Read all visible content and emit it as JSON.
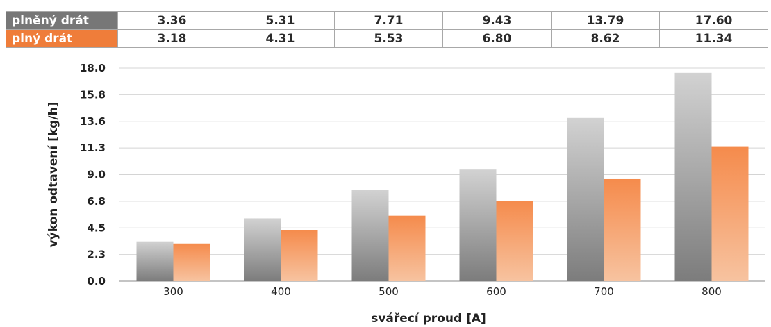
{
  "table": {
    "rows": [
      {
        "label": "plněný drát",
        "values": [
          "3.36",
          "5.31",
          "7.71",
          "9.43",
          "13.79",
          "17.60"
        ]
      },
      {
        "label": "plný drát",
        "values": [
          "3.18",
          "4.31",
          "5.53",
          "6.80",
          "8.62",
          "11.34"
        ]
      }
    ]
  },
  "chart_data": {
    "type": "bar",
    "categories": [
      "300",
      "400",
      "500",
      "600",
      "700",
      "800"
    ],
    "series": [
      {
        "name": "plněný drát",
        "values": [
          3.36,
          5.31,
          7.71,
          9.43,
          13.79,
          17.6
        ],
        "color": "#8c8c8c"
      },
      {
        "name": "plný drát",
        "values": [
          3.18,
          4.31,
          5.53,
          6.8,
          8.62,
          11.34
        ],
        "color": "#f08848"
      }
    ],
    "yticks": [
      "0.0",
      "2.3",
      "4.5",
      "6.8",
      "9.0",
      "11.3",
      "13.6",
      "15.8",
      "18.0"
    ],
    "ylim": [
      0,
      18
    ],
    "xlabel": "svářecí proud [A]",
    "ylabel": "výkon odtavení [kg/h]",
    "grid": true
  }
}
